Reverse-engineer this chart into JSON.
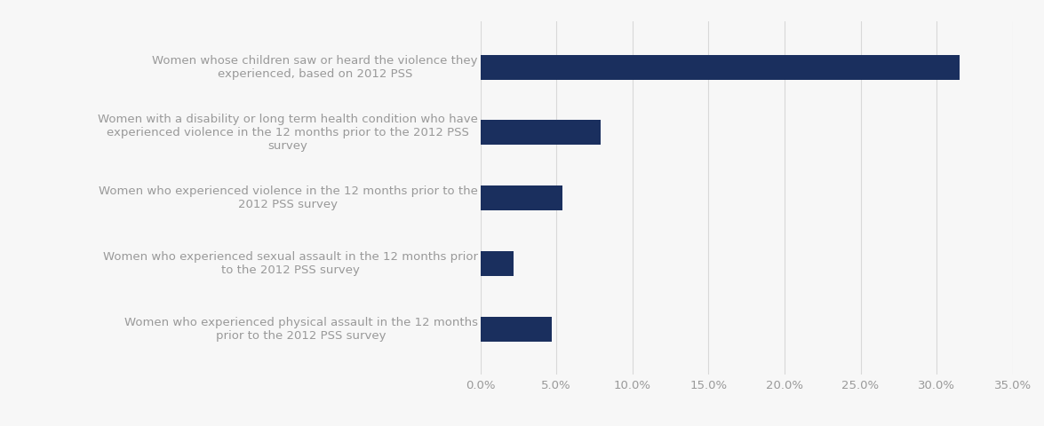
{
  "categories": [
    "Women who experienced physical assault in the 12 months\nprior to the 2012 PSS survey",
    "Women who experienced sexual assault in the 12 months prior\nto the 2012 PSS survey",
    "Women who experienced violence in the 12 months prior to the\n2012 PSS survey",
    "Women with a disability or long term health condition who have\nexperienced violence in the 12 months prior to the 2012 PSS\nsurvey",
    "Women whose children saw or heard the violence they\nexperienced, based on 2012 PSS"
  ],
  "values": [
    0.047,
    0.022,
    0.054,
    0.079,
    0.315
  ],
  "bar_color": "#1a2f5e",
  "background_color": "#f7f7f7",
  "xlim": [
    0,
    0.35
  ],
  "xticks": [
    0.0,
    0.05,
    0.1,
    0.15,
    0.2,
    0.25,
    0.3,
    0.35
  ],
  "tick_labels": [
    "0.0%",
    "5.0%",
    "10.0%",
    "15.0%",
    "20.0%",
    "25.0%",
    "30.0%",
    "35.0%"
  ],
  "label_color": "#999999",
  "grid_color": "#d8d8d8",
  "bar_height": 0.38,
  "label_fontsize": 9.5,
  "tick_fontsize": 9.5
}
